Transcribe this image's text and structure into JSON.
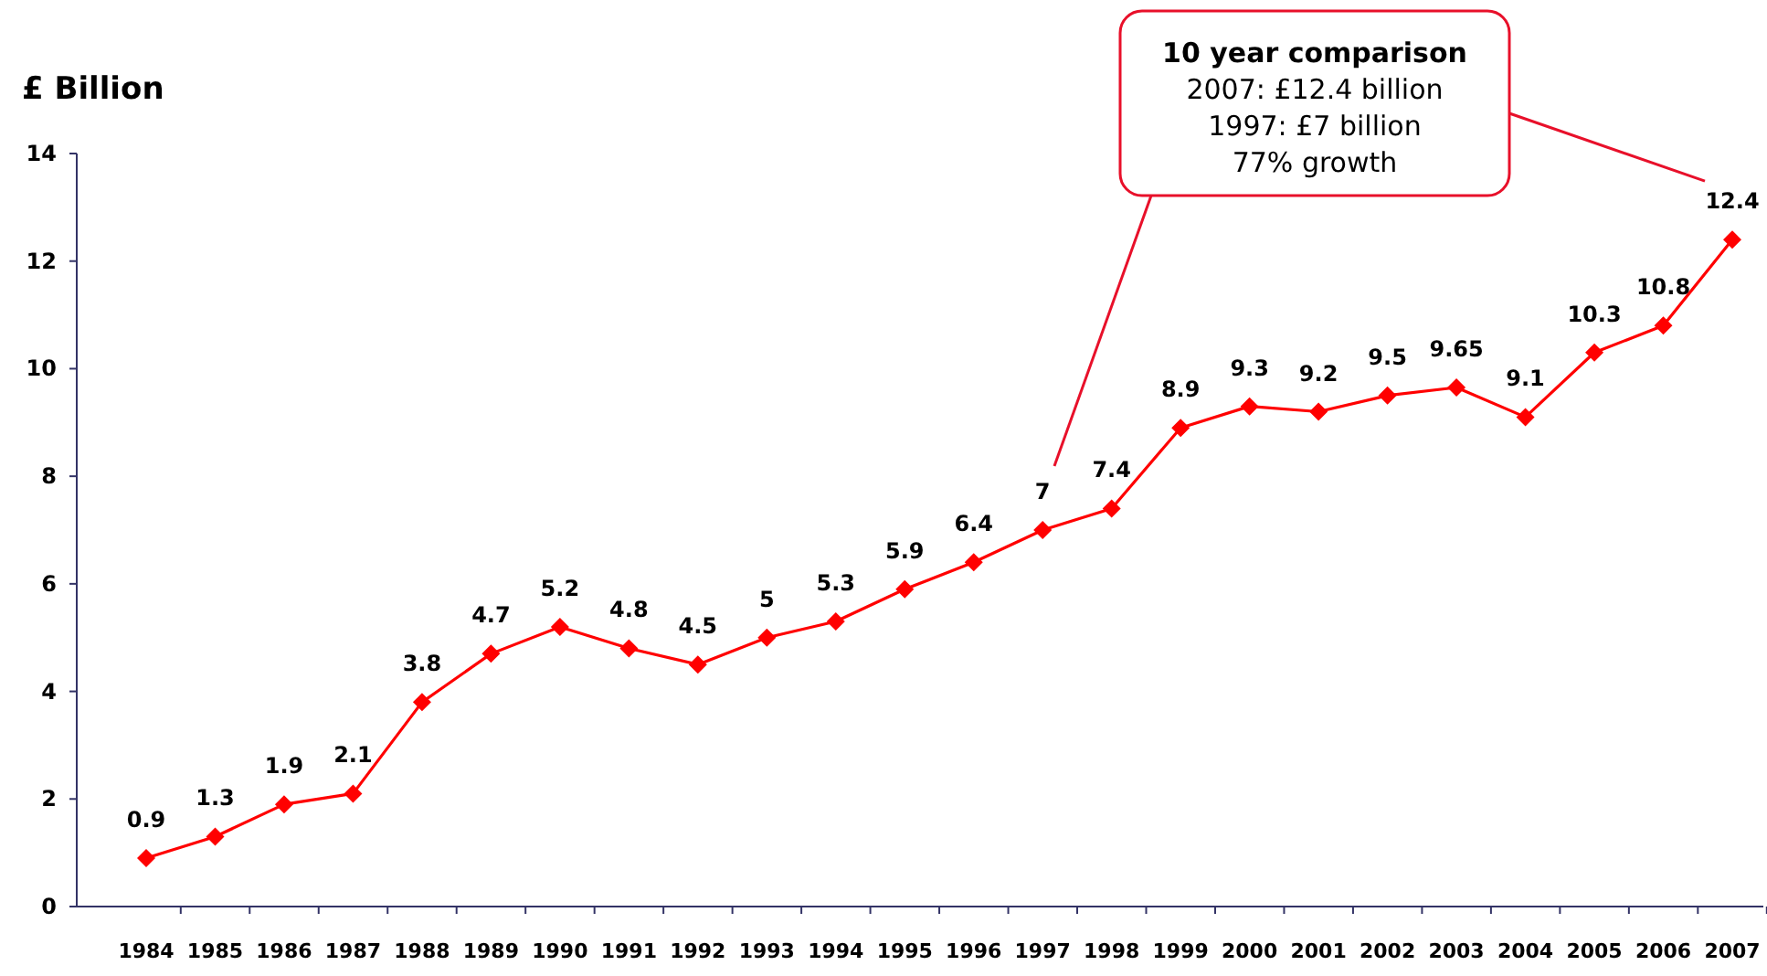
{
  "chart_data": {
    "type": "line",
    "ylabel": "£ Billion",
    "categories": [
      "1984",
      "1985",
      "1986",
      "1987",
      "1988",
      "1989",
      "1990",
      "1991",
      "1992",
      "1993",
      "1994",
      "1995",
      "1996",
      "1997",
      "1998",
      "1999",
      "2000",
      "2001",
      "2002",
      "2003",
      "2004",
      "2005",
      "2006",
      "2007"
    ],
    "series": [
      {
        "color": "#ff0000",
        "values": [
          0.9,
          1.3,
          1.9,
          2.1,
          3.8,
          4.7,
          5.2,
          4.8,
          4.5,
          5,
          5.3,
          5.9,
          6.4,
          7,
          7.4,
          8.9,
          9.3,
          9.2,
          9.5,
          9.65,
          9.1,
          10.3,
          10.8,
          12.4
        ]
      }
    ],
    "ylim": [
      0,
      14
    ],
    "yticks": [
      0,
      2,
      4,
      6,
      8,
      10,
      12,
      14
    ],
    "grid": false,
    "marker": "diamond",
    "line_style": "solid",
    "data_labels": true,
    "annotations": [
      "10 year comparison\n2007: £12.4 billion\n1997: £7 billion\n77% growth"
    ]
  }
}
